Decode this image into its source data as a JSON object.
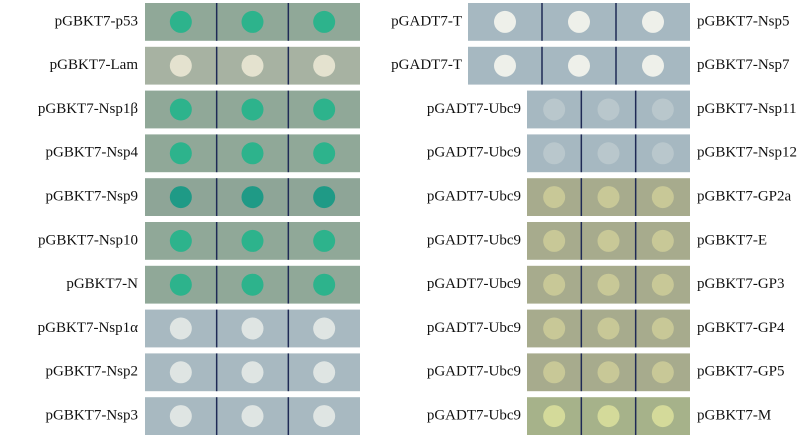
{
  "rows": [
    {
      "left": "pGBKT7-p53",
      "middle": "pGADT7-T",
      "right": "pGBKT7-Nsp5"
    },
    {
      "left": "pGBKT7-Lam",
      "middle": "pGADT7-T",
      "right": "pGBKT7-Nsp7"
    },
    {
      "left": "pGBKT7-Nsp1β",
      "middle": "pGADT7-Ubc9",
      "right": "pGBKT7-Nsp11"
    },
    {
      "left": "pGBKT7-Nsp4",
      "middle": "pGADT7-Ubc9",
      "right": "pGBKT7-Nsp12"
    },
    {
      "left": "pGBKT7-Nsp9",
      "middle": "pGADT7-Ubc9",
      "right": "pGBKT7-GP2a"
    },
    {
      "left": "pGBKT7-Nsp10",
      "middle": "pGADT7-Ubc9",
      "right": "pGBKT7-E"
    },
    {
      "left": "pGBKT7-N",
      "middle": "pGADT7-Ubc9",
      "right": "pGBKT7-GP3"
    },
    {
      "left": "pGBKT7-Nsp1α",
      "middle": "pGADT7-Ubc9",
      "right": "pGBKT7-GP4"
    },
    {
      "left": "pGBKT7-Nsp2",
      "middle": "pGADT7-Ubc9",
      "right": "pGBKT7-GP5"
    },
    {
      "left": "pGBKT7-Nsp3",
      "middle": "pGADT7-Ubc9",
      "right": "pGBKT7-M"
    }
  ]
}
